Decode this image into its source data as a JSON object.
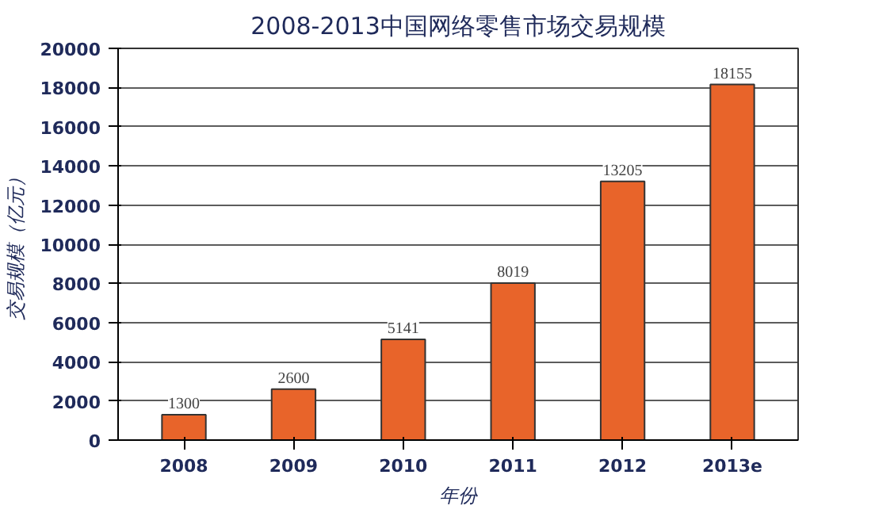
{
  "chart_data": {
    "type": "bar",
    "title": "2008-2013中国网络零售市场交易规模",
    "xlabel": "年份",
    "ylabel": "交易规模（亿元）",
    "categories": [
      "2008",
      "2009",
      "2010",
      "2011",
      "2012",
      "2013e"
    ],
    "values": [
      1300,
      2600,
      5141,
      8019,
      13205,
      18155
    ],
    "color": "#e8642a",
    "data_labels": true,
    "grid": "y",
    "ylim": [
      0,
      20000
    ],
    "yticks": [
      0,
      2000,
      4000,
      6000,
      8000,
      10000,
      12000,
      14000,
      16000,
      18000,
      20000
    ]
  }
}
